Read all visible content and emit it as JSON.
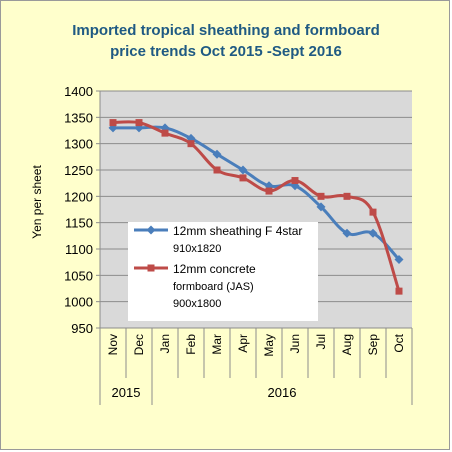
{
  "chart_data": {
    "type": "line",
    "title_lines": [
      "Imported tropical sheathing and formboard",
      "price trends Oct 2015 -Sept 2016"
    ],
    "ylabel": "Yen per sheet",
    "ylim": [
      950,
      1400
    ],
    "yticks": [
      "1400",
      "1350",
      "1300",
      "1250",
      "1200",
      "1150",
      "1100",
      "1050",
      "1000",
      "950"
    ],
    "categories": [
      "Nov",
      "Dec",
      "Jan",
      "Feb",
      "Mar",
      "Apr",
      "May",
      "Jun",
      "Jul",
      "Aug",
      "Sep",
      "Oct"
    ],
    "year_groups": [
      {
        "label": "2015",
        "span": 2
      },
      {
        "label": "2016",
        "span": 10
      }
    ],
    "grid": true,
    "legend_position": "lower-left inside plot",
    "series": [
      {
        "name_lines": [
          "12mm sheathing F 4star",
          "910x1820"
        ],
        "color": "#4a7ebb",
        "marker": "diamond",
        "values": [
          1330,
          1330,
          1330,
          1310,
          1280,
          1250,
          1220,
          1220,
          1180,
          1130,
          1130,
          1080
        ]
      },
      {
        "name_lines": [
          "12mm concrete",
          "formboard (JAS)",
          "900x1800"
        ],
        "color": "#be4b48",
        "marker": "square",
        "values": [
          1340,
          1340,
          1320,
          1300,
          1250,
          1235,
          1210,
          1230,
          1200,
          1200,
          1170,
          1020
        ]
      }
    ]
  }
}
